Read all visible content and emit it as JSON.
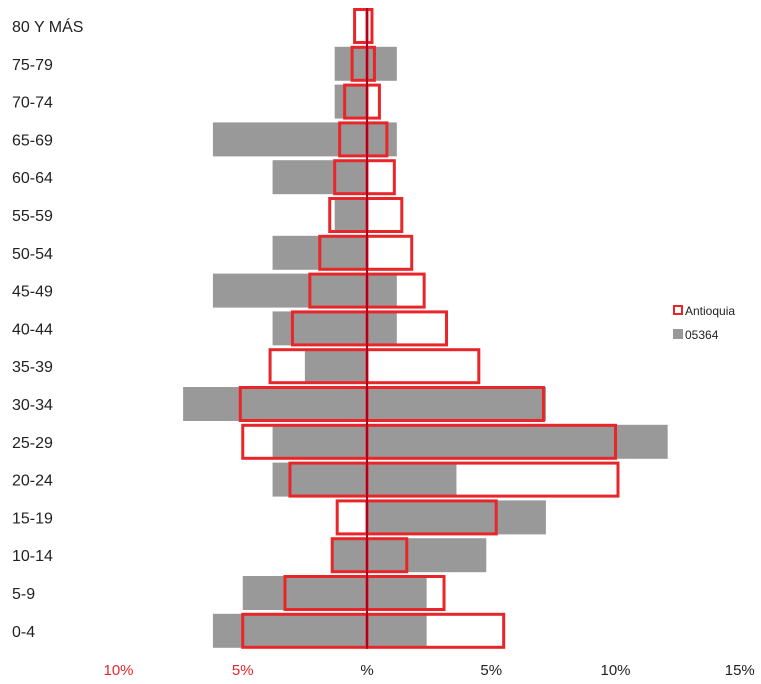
{
  "chart_data": {
    "type": "bar",
    "subtype": "population-pyramid",
    "categories": [
      "0-4",
      "5-9",
      "10-14",
      "15-19",
      "20-24",
      "25-29",
      "30-34",
      "35-39",
      "40-44",
      "45-49",
      "50-54",
      "55-59",
      "60-64",
      "65-69",
      "70-74",
      "75-79",
      "80 Y MÁS"
    ],
    "series": [
      {
        "name": "Antioquia",
        "style": "outline",
        "color": "#e8262a",
        "left": [
          5.0,
          3.3,
          1.4,
          1.2,
          3.1,
          5.0,
          5.1,
          3.9,
          3.0,
          2.3,
          1.9,
          1.5,
          1.3,
          1.1,
          0.9,
          0.6,
          0.5
        ],
        "right": [
          5.5,
          3.1,
          1.6,
          5.2,
          10.1,
          10.0,
          7.1,
          4.5,
          3.2,
          2.3,
          1.8,
          1.4,
          1.1,
          0.8,
          0.5,
          0.3,
          0.2
        ]
      },
      {
        "name": "05364",
        "style": "fill",
        "color": "#999999",
        "left": [
          6.2,
          5.0,
          1.4,
          0.0,
          3.8,
          3.8,
          7.4,
          2.5,
          3.8,
          6.2,
          3.8,
          1.3,
          3.8,
          6.2,
          1.3,
          1.3,
          0.0
        ],
        "right": [
          2.4,
          2.4,
          4.8,
          7.2,
          3.6,
          12.1,
          7.2,
          0.0,
          1.2,
          1.2,
          0.0,
          0.0,
          0.0,
          1.2,
          0.0,
          1.2,
          0.0
        ]
      }
    ],
    "x_ticks": [
      {
        "label": "10%",
        "value": -10,
        "color": "#e8262a"
      },
      {
        "label": "5%",
        "value": -5,
        "color": "#e8262a"
      },
      {
        "label": "%",
        "value": 0,
        "color": "#222222"
      },
      {
        "label": "5%",
        "value": 5,
        "color": "#222222"
      },
      {
        "label": "10%",
        "value": 10,
        "color": "#222222"
      },
      {
        "label": "15%",
        "value": 15,
        "color": "#222222"
      }
    ],
    "xlim": [
      -10,
      15
    ],
    "legend": {
      "placement": "right",
      "entries": [
        {
          "label": "Antioquia",
          "swatch": "outline",
          "color": "#e8262a"
        },
        {
          "label": "05364",
          "swatch": "fill",
          "color": "#999999"
        }
      ]
    },
    "grid": false,
    "center_line_color": "#b00020"
  }
}
